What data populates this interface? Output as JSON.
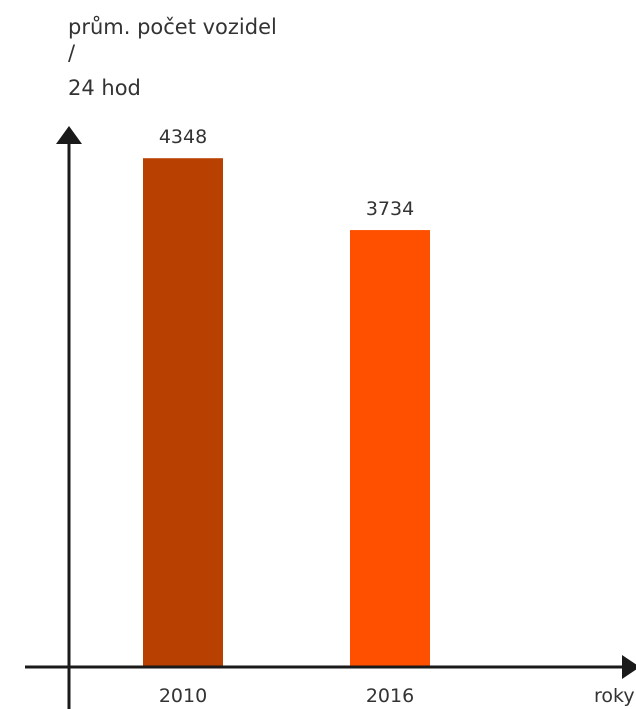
{
  "chart_data": {
    "type": "bar",
    "ylabel_lines": [
      "prům. počet vozidel",
      "/",
      "24 hod"
    ],
    "xlabel": "roky",
    "categories": [
      "2010",
      "2016"
    ],
    "values": [
      4348,
      3734
    ],
    "ylim": [
      0,
      5700
    ],
    "data_labels": [
      "4348",
      "3734"
    ],
    "colors": [
      "#b84000",
      "#ff5000"
    ],
    "axis_color": "#1a1a1a",
    "grid": false,
    "legend": "none"
  }
}
